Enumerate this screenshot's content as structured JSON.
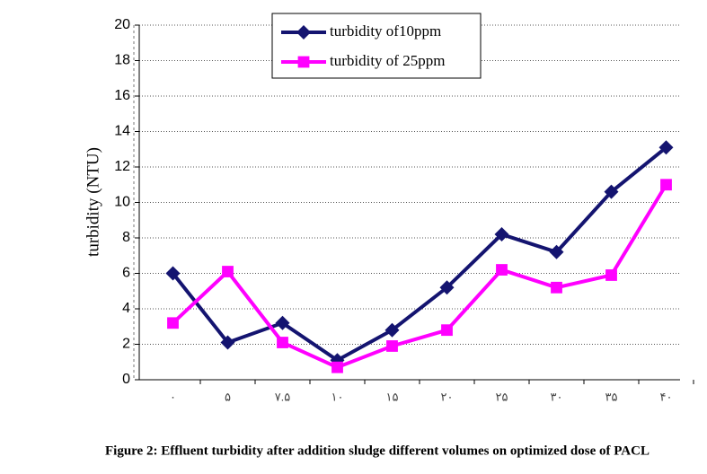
{
  "chart_data": {
    "type": "line",
    "y_label": "turbidity (NTU)",
    "caption": "Figure 2: Effluent turbidity after addition sludge different volumes on optimized dose of PACL",
    "categories": [
      "۰",
      "۵",
      "۷.۵",
      "۱۰",
      "۱۵",
      "۲۰",
      "۲۵",
      "۳۰",
      "۳۵",
      "۴۰"
    ],
    "series": [
      {
        "name": "turbidity of10ppm",
        "color": "#141470",
        "marker": "diamond",
        "values": [
          6,
          2.1,
          3.2,
          1.1,
          2.8,
          5.2,
          8.2,
          7.2,
          10.6,
          13.1
        ]
      },
      {
        "name": "turbidity of 25ppm",
        "color": "#ff00ff",
        "marker": "square",
        "values": [
          3.2,
          6.1,
          2.1,
          0.7,
          1.9,
          2.8,
          6.2,
          5.2,
          5.9,
          11.0
        ]
      }
    ],
    "ylim": [
      0,
      20
    ],
    "yticks": [
      0,
      2,
      4,
      6,
      8,
      10,
      12,
      14,
      16,
      18,
      20
    ],
    "grid": true
  }
}
